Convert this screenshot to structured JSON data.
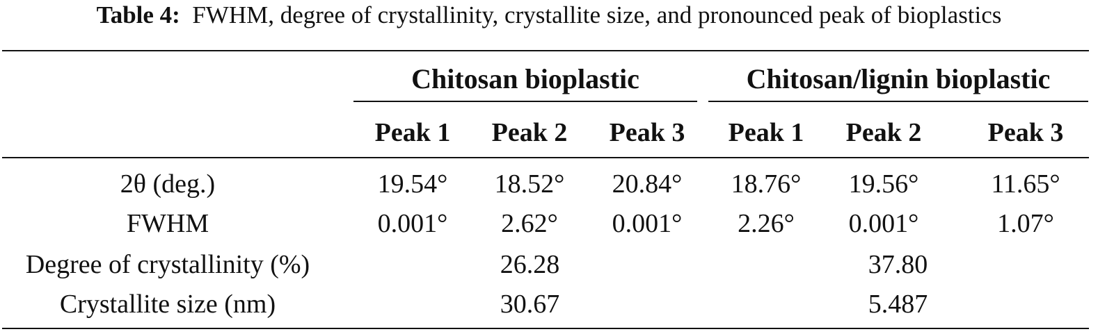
{
  "caption": {
    "label": "Table 4:",
    "text": "FWHM, degree of crystallinity, crystallite size, and pronounced peak of bioplastics"
  },
  "groups": [
    "Chitosan bioplastic",
    "Chitosan/lignin bioplastic"
  ],
  "peaks": [
    "Peak 1",
    "Peak 2",
    "Peak 3",
    "Peak 1",
    "Peak 2",
    "Peak 3"
  ],
  "rows": [
    {
      "label": "2θ (deg.)",
      "values": [
        "19.54°",
        "18.52°",
        "20.84°",
        "18.76°",
        "19.56°",
        "11.65°"
      ]
    },
    {
      "label": "FWHM",
      "values": [
        "0.001°",
        "2.62°",
        "0.001°",
        "2.26°",
        "0.001°",
        "1.07°"
      ]
    },
    {
      "label": "Degree of crystallinity (%)",
      "values": [
        "26.28",
        "37.80"
      ]
    },
    {
      "label": "Crystallite size (nm)",
      "values": [
        "30.67",
        "5.487"
      ]
    }
  ]
}
